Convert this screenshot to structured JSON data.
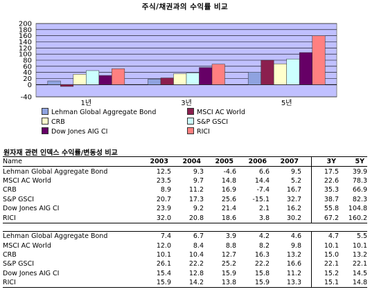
{
  "chart_data": {
    "type": "bar",
    "title": "주식/채권과의 수익률 비교",
    "categories": [
      "1년",
      "3년",
      "5년"
    ],
    "ylim": [
      -40,
      200
    ],
    "yticks": [
      -40,
      0,
      20,
      40,
      60,
      80,
      100,
      120,
      140,
      160,
      180,
      200
    ],
    "grid": true,
    "legend_position": "bottom",
    "series": [
      {
        "name": "Lehman Global Aggregate Bond",
        "color": "#8fa3e0",
        "values": [
          12,
          18,
          41
        ]
      },
      {
        "name": "MSCI AC World",
        "color": "#8b1f4e",
        "values": [
          -6,
          22,
          80
        ]
      },
      {
        "name": "CRB",
        "color": "#ffffcc",
        "values": [
          34,
          36,
          68
        ]
      },
      {
        "name": "S&P GSCI",
        "color": "#ccffff",
        "values": [
          46,
          38,
          84
        ]
      },
      {
        "name": "Dow Jones AIG CI",
        "color": "#660066",
        "values": [
          30,
          56,
          105
        ]
      },
      {
        "name": "RICI",
        "color": "#ff8080",
        "values": [
          52,
          67,
          160
        ]
      }
    ]
  },
  "table": {
    "title": "원자재 관련 인덱스 수익률/변동성 비교",
    "headers": [
      "Name",
      "2003",
      "2004",
      "2005",
      "2006",
      "2007",
      "3Y",
      "5Y"
    ],
    "returns": [
      [
        "Lehman Global Aggregate Bond",
        "12.5",
        "9.3",
        "-4.6",
        "6.6",
        "9.5",
        "17.5",
        "39.9"
      ],
      [
        "MSCI AC World",
        "23.5",
        "9.7",
        "14.8",
        "14.4",
        "5.2",
        "22.6",
        "78.3"
      ],
      [
        "CRB",
        "8.9",
        "11.2",
        "16.9",
        "-7.4",
        "16.7",
        "35.3",
        "66.9"
      ],
      [
        "S&P GSCI",
        "20.7",
        "17.3",
        "25.6",
        "-15.1",
        "32.7",
        "38.7",
        "82.3"
      ],
      [
        "Dow Jones AIG CI",
        "23.9",
        "9.2",
        "21.4",
        "2.1",
        "16.2",
        "55.8",
        "104.8"
      ],
      [
        "RICI",
        "32.0",
        "20.8",
        "18.6",
        "3.8",
        "30.2",
        "67.2",
        "160.2"
      ]
    ],
    "volatility": [
      [
        "Lehman Global Aggregate Bond",
        "7.4",
        "6.7",
        "3.9",
        "4.2",
        "4.6",
        "4.7",
        "5.5"
      ],
      [
        "MSCI AC World",
        "12.0",
        "8.4",
        "8.8",
        "8.2",
        "9.8",
        "10.1",
        "10.1"
      ],
      [
        "CRB",
        "10.1",
        "10.4",
        "12.7",
        "16.3",
        "13.2",
        "15.0",
        "13.2"
      ],
      [
        "S&P GSCI",
        "26.1",
        "22.2",
        "25.2",
        "22.2",
        "16.6",
        "22.1",
        "22.1"
      ],
      [
        "Dow Jones AIG CI",
        "15.4",
        "12.8",
        "15.9",
        "15.8",
        "11.2",
        "15.2",
        "14.5"
      ],
      [
        "RICI",
        "15.9",
        "14.2",
        "13.8",
        "15.9",
        "13.3",
        "15.1",
        "14.8"
      ]
    ]
  }
}
